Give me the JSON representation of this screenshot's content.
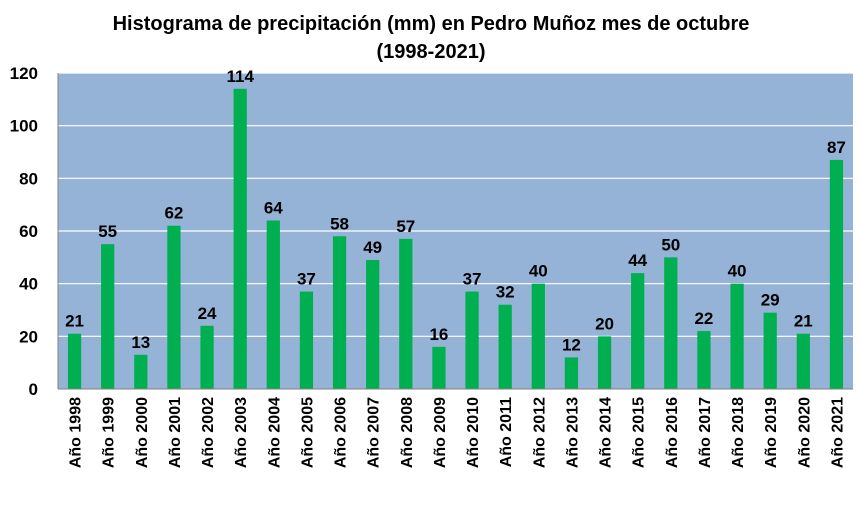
{
  "chart_data": {
    "type": "bar",
    "title_line1": "Histograma de precipitación (mm) en Pedro Muñoz mes de octubre",
    "title_line2": "(1998-2021)",
    "xlabel": "",
    "ylabel": "",
    "categories": [
      "Año 1998",
      "Año 1999",
      "Año 2000",
      "Año 2001",
      "Año 2002",
      "Año 2003",
      "Año 2004",
      "Año 2005",
      "Año 2006",
      "Año 2007",
      "Año 2008",
      "Año 2009",
      "Año 2010",
      "Año 2011",
      "Año 2012",
      "Año 2013",
      "Año 2014",
      "Año 2015",
      "Año 2016",
      "Año 2017",
      "Año 2018",
      "Año 2019",
      "Año 2020",
      "Año 2021"
    ],
    "values": [
      21,
      55,
      13,
      62,
      24,
      114,
      64,
      37,
      58,
      49,
      57,
      16,
      37,
      32,
      40,
      12,
      20,
      44,
      50,
      22,
      40,
      29,
      21,
      87
    ],
    "ylim": [
      0,
      120
    ],
    "yticks": [
      0,
      20,
      40,
      60,
      80,
      100,
      120
    ],
    "grid": true,
    "legend": "none",
    "colors": {
      "bar": "#00b050",
      "plot_background": "#95b3d7",
      "gridline": "#ffffff"
    }
  }
}
